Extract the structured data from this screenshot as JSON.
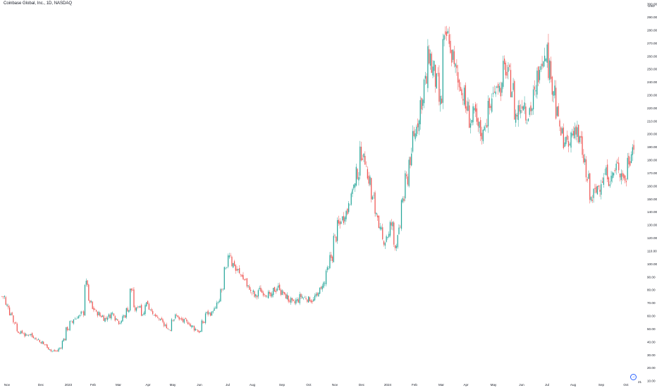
{
  "header": {
    "title": "Coinbase Global, Inc., 1D, NASDAQ"
  },
  "price_axis": {
    "unit_label": "USD",
    "labels": [
      "10.00",
      "20.00",
      "30.00",
      "40.00",
      "50.00",
      "60.00",
      "70.00",
      "80.00",
      "90.00",
      "100.00",
      "110.00",
      "120.00",
      "130.00",
      "140.00",
      "150.00",
      "160.00",
      "170.00",
      "180.00",
      "190.00",
      "200.00",
      "210.00",
      "220.00",
      "230.00",
      "240.00",
      "250.00",
      "260.00",
      "270.00",
      "280.00",
      "290.00",
      "300.00"
    ]
  },
  "time_axis": {
    "labels": [
      "Nov",
      "Dec",
      "2023",
      "Feb",
      "Mar",
      "Apr",
      "May",
      "Jun",
      "Jul",
      "Aug",
      "Sep",
      "Oct",
      "Nov",
      "Dec",
      "2024",
      "Feb",
      "Mar",
      "Apr",
      "May",
      "Jun",
      "Jul",
      "Aug",
      "Sep",
      "Oct"
    ],
    "corner_label": "21"
  },
  "goto_button": {
    "icon": "goto-realtime-icon"
  },
  "colors": {
    "up": "#26a69a",
    "down": "#ef5350",
    "text": "#131722"
  },
  "chart_data": {
    "type": "candlestick",
    "title": "Coinbase Global, Inc., 1D, NASDAQ",
    "ylim": [
      10,
      300
    ],
    "y_ticks": [
      10,
      20,
      30,
      40,
      50,
      60,
      70,
      80,
      90,
      100,
      110,
      120,
      130,
      140,
      150,
      160,
      170,
      180,
      190,
      200,
      210,
      220,
      230,
      240,
      250,
      260,
      270,
      280,
      290,
      300
    ],
    "grid": false,
    "x_months": [
      "Nov",
      "Dec",
      "2023",
      "Feb",
      "Mar",
      "Apr",
      "May",
      "Jun",
      "Jul",
      "Aug",
      "Sep",
      "Oct",
      "Nov",
      "Dec",
      "2024",
      "Feb",
      "Mar",
      "Apr",
      "May",
      "Jun",
      "Jul",
      "Aug",
      "Sep",
      "Oct"
    ],
    "month_closes": [
      [
        75,
        68,
        62,
        55,
        48,
        47,
        45
      ],
      [
        46,
        44,
        42,
        40,
        38,
        35,
        33
      ],
      [
        33,
        35,
        42,
        50,
        55,
        58,
        60
      ],
      [
        62,
        85,
        70,
        65,
        62,
        60,
        58
      ],
      [
        60,
        62,
        58,
        55,
        60,
        65,
        80
      ],
      [
        65,
        68,
        62,
        70,
        66,
        60,
        58
      ],
      [
        56,
        52,
        50,
        58,
        60,
        57,
        56
      ],
      [
        55,
        52,
        50,
        48,
        55,
        62,
        62
      ],
      [
        65,
        70,
        80,
        95,
        108,
        100,
        95
      ],
      [
        92,
        88,
        82,
        78,
        75,
        80,
        78
      ],
      [
        77,
        75,
        80,
        82,
        78,
        75,
        72
      ],
      [
        70,
        72,
        75,
        74,
        73,
        72,
        75
      ],
      [
        80,
        85,
        95,
        105,
        120,
        130,
        135
      ],
      [
        140,
        150,
        160,
        170,
        185,
        180,
        165
      ],
      [
        150,
        140,
        125,
        118,
        122,
        130,
        115
      ],
      [
        125,
        150,
        165,
        180,
        200,
        210,
        225
      ],
      [
        240,
        260,
        250,
        240,
        225,
        270,
        275
      ],
      [
        260,
        250,
        240,
        230,
        220,
        210,
        215
      ],
      [
        205,
        200,
        210,
        220,
        230,
        240,
        235
      ],
      [
        250,
        245,
        235,
        215,
        220,
        225,
        215
      ],
      [
        220,
        230,
        245,
        260,
        265,
        250,
        235
      ],
      [
        215,
        200,
        195,
        190,
        200,
        205,
        195
      ],
      [
        180,
        165,
        150,
        155,
        160,
        165,
        170
      ],
      [
        165,
        170,
        175,
        170,
        165,
        180,
        190
      ]
    ]
  }
}
